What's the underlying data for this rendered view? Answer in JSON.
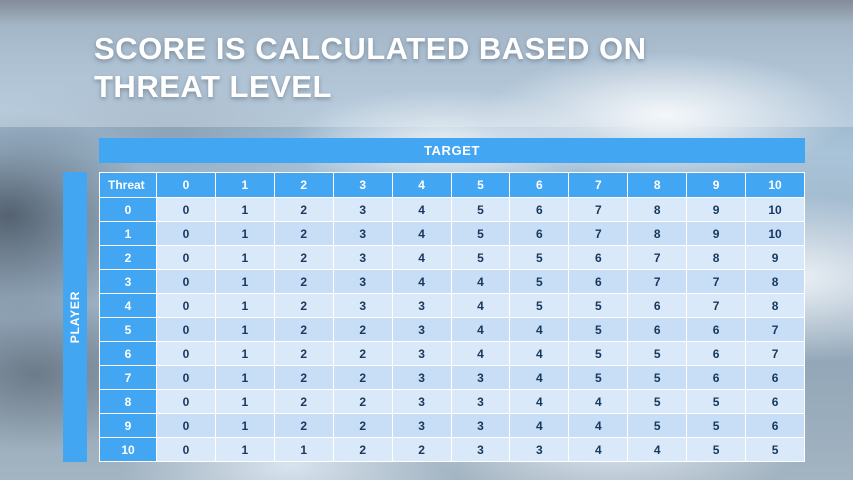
{
  "title": {
    "line1": "SCORE IS CALCULATED BASED ON",
    "line2": "THREAT LEVEL"
  },
  "table": {
    "target_label": "TARGET",
    "player_label": "PLAYER",
    "corner_label": "Threat",
    "col_headers": [
      "0",
      "1",
      "2",
      "3",
      "4",
      "5",
      "6",
      "7",
      "8",
      "9",
      "10"
    ],
    "rows": [
      {
        "label": "0",
        "values": [
          0,
          1,
          2,
          3,
          4,
          5,
          6,
          7,
          8,
          9,
          10
        ]
      },
      {
        "label": "1",
        "values": [
          0,
          1,
          2,
          3,
          4,
          5,
          6,
          7,
          8,
          9,
          10
        ]
      },
      {
        "label": "2",
        "values": [
          0,
          1,
          2,
          3,
          4,
          5,
          5,
          6,
          7,
          8,
          9
        ]
      },
      {
        "label": "3",
        "values": [
          0,
          1,
          2,
          3,
          4,
          4,
          5,
          6,
          7,
          7,
          8
        ]
      },
      {
        "label": "4",
        "values": [
          0,
          1,
          2,
          3,
          3,
          4,
          5,
          5,
          6,
          7,
          8
        ]
      },
      {
        "label": "5",
        "values": [
          0,
          1,
          2,
          2,
          3,
          4,
          4,
          5,
          6,
          6,
          7
        ]
      },
      {
        "label": "6",
        "values": [
          0,
          1,
          2,
          2,
          3,
          4,
          4,
          5,
          5,
          6,
          7
        ]
      },
      {
        "label": "7",
        "values": [
          0,
          1,
          2,
          2,
          3,
          3,
          4,
          5,
          5,
          6,
          6
        ]
      },
      {
        "label": "8",
        "values": [
          0,
          1,
          2,
          2,
          3,
          3,
          4,
          4,
          5,
          5,
          6
        ]
      },
      {
        "label": "9",
        "values": [
          0,
          1,
          2,
          2,
          3,
          3,
          4,
          4,
          5,
          5,
          6
        ]
      },
      {
        "label": "10",
        "values": [
          0,
          1,
          1,
          2,
          2,
          3,
          3,
          4,
          4,
          5,
          5
        ]
      }
    ]
  },
  "colors": {
    "accent_blue": "#42A6F3",
    "row_light": "#DAE9FA",
    "row_dark": "#C7DEF6",
    "cell_text": "#17375E",
    "title_text": "#FFFFFF"
  }
}
